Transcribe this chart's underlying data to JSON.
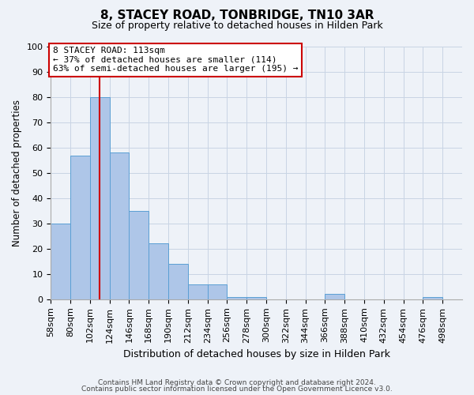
{
  "title": "8, STACEY ROAD, TONBRIDGE, TN10 3AR",
  "subtitle": "Size of property relative to detached houses in Hilden Park",
  "xlabel": "Distribution of detached houses by size in Hilden Park",
  "ylabel": "Number of detached properties",
  "bin_labels": [
    "58sqm",
    "80sqm",
    "102sqm",
    "124sqm",
    "146sqm",
    "168sqm",
    "190sqm",
    "212sqm",
    "234sqm",
    "256sqm",
    "278sqm",
    "300sqm",
    "322sqm",
    "344sqm",
    "366sqm",
    "388sqm",
    "410sqm",
    "432sqm",
    "454sqm",
    "476sqm",
    "498sqm"
  ],
  "bar_values": [
    30,
    57,
    80,
    58,
    35,
    22,
    14,
    6,
    6,
    1,
    1,
    0,
    0,
    0,
    2,
    0,
    0,
    0,
    0,
    1,
    0
  ],
  "bar_color": "#aec6e8",
  "bar_edge_color": "#5a9fd4",
  "vline_x": 113,
  "bin_edges_sqm": [
    58,
    80,
    102,
    124,
    146,
    168,
    190,
    212,
    234,
    256,
    278,
    300,
    322,
    344,
    366,
    388,
    410,
    432,
    454,
    476,
    498,
    520
  ],
  "ylim": [
    0,
    100
  ],
  "yticks": [
    0,
    10,
    20,
    30,
    40,
    50,
    60,
    70,
    80,
    90,
    100
  ],
  "annotation_line1": "8 STACEY ROAD: 113sqm",
  "annotation_line2": "← 37% of detached houses are smaller (114)",
  "annotation_line3": "63% of semi-detached houses are larger (195) →",
  "annotation_box_color": "#ffffff",
  "annotation_box_edge_color": "#cc0000",
  "vline_color": "#cc0000",
  "footer_line1": "Contains HM Land Registry data © Crown copyright and database right 2024.",
  "footer_line2": "Contains public sector information licensed under the Open Government Licence v3.0.",
  "background_color": "#eef2f8",
  "grid_color": "#c8d4e4",
  "title_fontsize": 11,
  "subtitle_fontsize": 9,
  "xlabel_fontsize": 9,
  "ylabel_fontsize": 8.5,
  "tick_fontsize": 8,
  "annot_fontsize": 8,
  "footer_fontsize": 6.5
}
